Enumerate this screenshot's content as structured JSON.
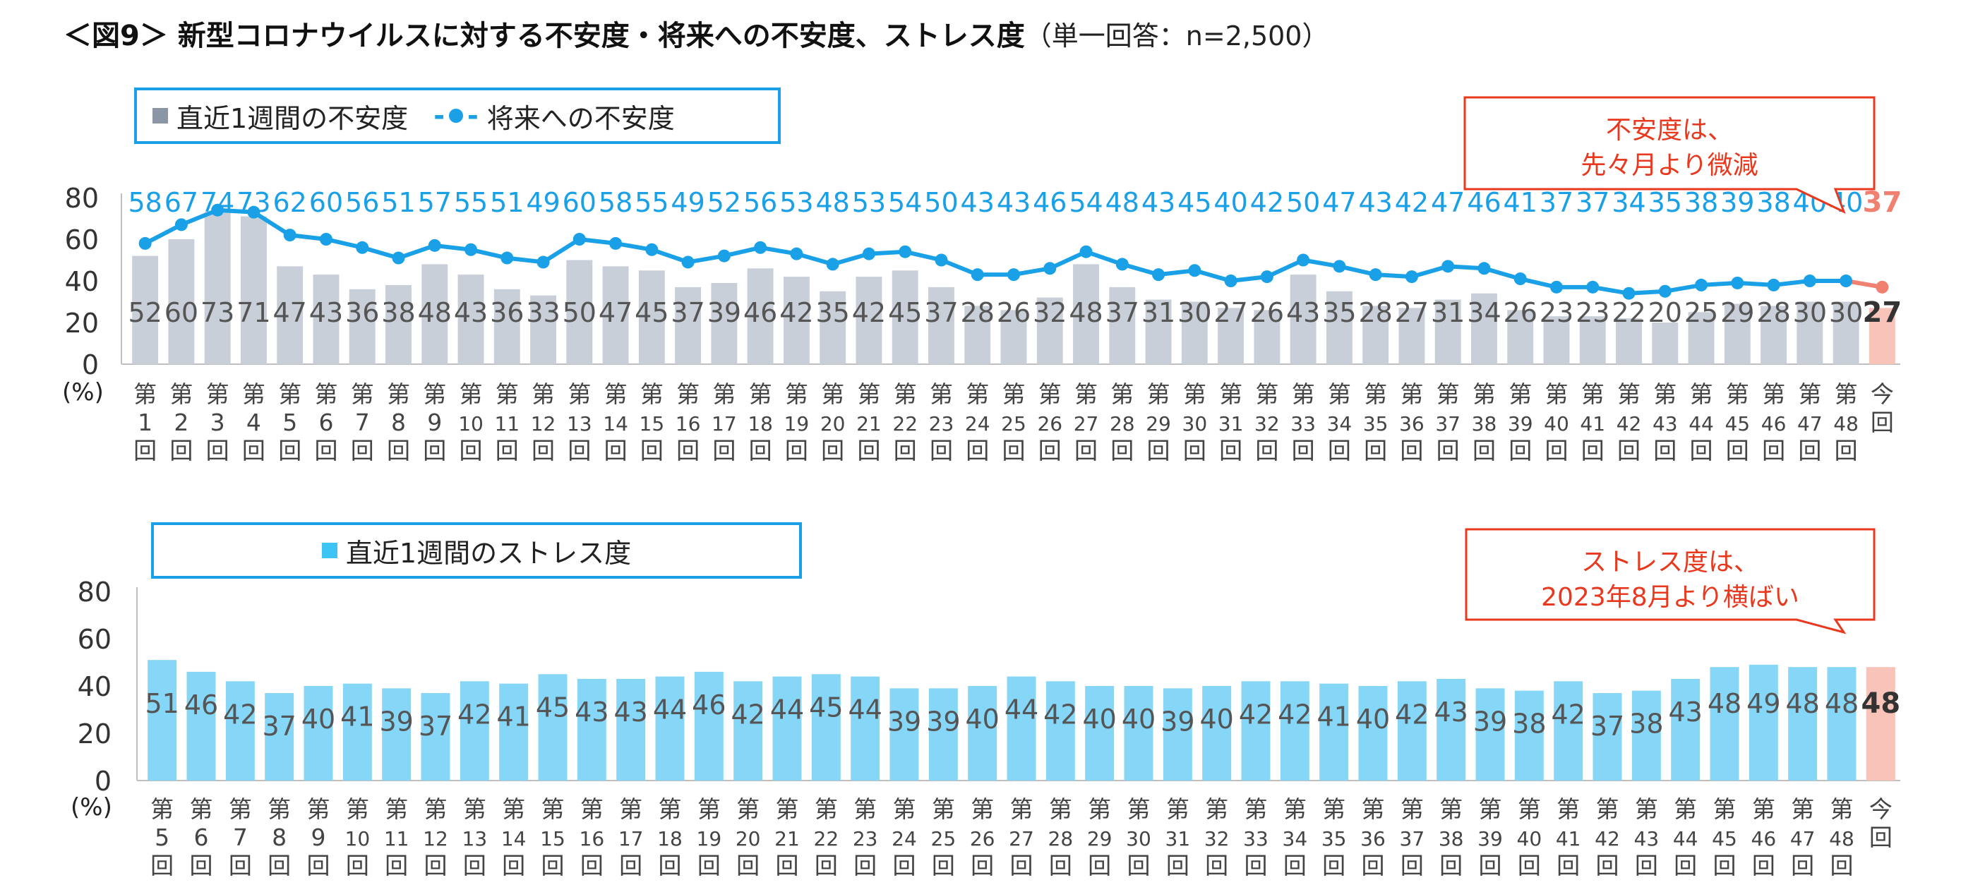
{
  "title": "＜図9＞ 新型コロナウイルスに対する不安度・将来への不安度、ストレス度",
  "subtitle": "（単一回答：n=2,500）",
  "colors": {
    "gray_bar": "#c9cfd8",
    "blue_line": "#1aa0e6",
    "cyan_bar": "#86d6f7",
    "highlight_bar": "#f8c3b9",
    "highlight_line": "#f08070",
    "callout_text": "#e8381e",
    "callout_border": "#e8381e",
    "legend_border": "#1aa0e6"
  },
  "chart_data": [
    {
      "type": "bar",
      "legend": {
        "bar": "直近1週間の不安度",
        "line": "将来への不安度"
      },
      "unit": "(%)",
      "ylim": [
        0,
        80
      ],
      "yticks": [
        "0",
        "20",
        "40",
        "60",
        "80"
      ],
      "categories": [
        "第1回",
        "第2回",
        "第3回",
        "第4回",
        "第5回",
        "第6回",
        "第7回",
        "第8回",
        "第9回",
        "第10回",
        "第11回",
        "第12回",
        "第13回",
        "第14回",
        "第15回",
        "第16回",
        "第17回",
        "第18回",
        "第19回",
        "第20回",
        "第21回",
        "第22回",
        "第23回",
        "第24回",
        "第25回",
        "第26回",
        "第27回",
        "第28回",
        "第29回",
        "第30回",
        "第31回",
        "第32回",
        "第33回",
        "第34回",
        "第35回",
        "第36回",
        "第37回",
        "第38回",
        "第39回",
        "第40回",
        "第41回",
        "第42回",
        "第43回",
        "第44回",
        "第45回",
        "第46回",
        "第47回",
        "第48回",
        "今回"
      ],
      "series": [
        {
          "name": "直近1週間の不安度",
          "type": "bar",
          "values": [
            52,
            60,
            73,
            71,
            47,
            43,
            36,
            38,
            48,
            43,
            36,
            33,
            50,
            47,
            45,
            37,
            39,
            46,
            42,
            35,
            42,
            45,
            37,
            28,
            26,
            32,
            48,
            37,
            31,
            30,
            27,
            26,
            43,
            35,
            28,
            27,
            31,
            34,
            26,
            23,
            23,
            22,
            20,
            25,
            29,
            28,
            30,
            30,
            27
          ]
        },
        {
          "name": "将来への不安度",
          "type": "line",
          "values": [
            58,
            67,
            74,
            73,
            62,
            60,
            56,
            51,
            57,
            55,
            51,
            49,
            60,
            58,
            55,
            49,
            52,
            56,
            53,
            48,
            53,
            54,
            50,
            43,
            43,
            46,
            54,
            48,
            43,
            45,
            40,
            42,
            50,
            47,
            43,
            42,
            47,
            46,
            41,
            37,
            37,
            34,
            35,
            38,
            39,
            38,
            40,
            40,
            37
          ]
        }
      ],
      "callout": {
        "line1": "不安度は、",
        "line2": "先々月より微減"
      }
    },
    {
      "type": "bar",
      "legend": {
        "bar": "直近1週間のストレス度"
      },
      "unit": "(%)",
      "ylim": [
        0,
        80
      ],
      "yticks": [
        "0",
        "20",
        "40",
        "60",
        "80"
      ],
      "categories": [
        "第5回",
        "第6回",
        "第7回",
        "第8回",
        "第9回",
        "第10回",
        "第11回",
        "第12回",
        "第13回",
        "第14回",
        "第15回",
        "第16回",
        "第17回",
        "第18回",
        "第19回",
        "第20回",
        "第21回",
        "第22回",
        "第23回",
        "第24回",
        "第25回",
        "第26回",
        "第27回",
        "第28回",
        "第29回",
        "第30回",
        "第31回",
        "第32回",
        "第33回",
        "第34回",
        "第35回",
        "第36回",
        "第37回",
        "第38回",
        "第39回",
        "第40回",
        "第41回",
        "第42回",
        "第43回",
        "第44回",
        "第45回",
        "第46回",
        "第47回",
        "第48回",
        "今回"
      ],
      "series": [
        {
          "name": "直近1週間のストレス度",
          "type": "bar",
          "values": [
            51,
            46,
            42,
            37,
            40,
            41,
            39,
            37,
            42,
            41,
            45,
            43,
            43,
            44,
            46,
            42,
            44,
            45,
            44,
            39,
            39,
            40,
            44,
            42,
            40,
            40,
            39,
            40,
            42,
            42,
            41,
            40,
            42,
            43,
            39,
            38,
            42,
            37,
            38,
            43,
            48,
            49,
            48,
            48,
            48
          ]
        }
      ],
      "callout": {
        "line1": "ストレス度は、",
        "line2": "2023年8月より横ばい"
      }
    }
  ]
}
